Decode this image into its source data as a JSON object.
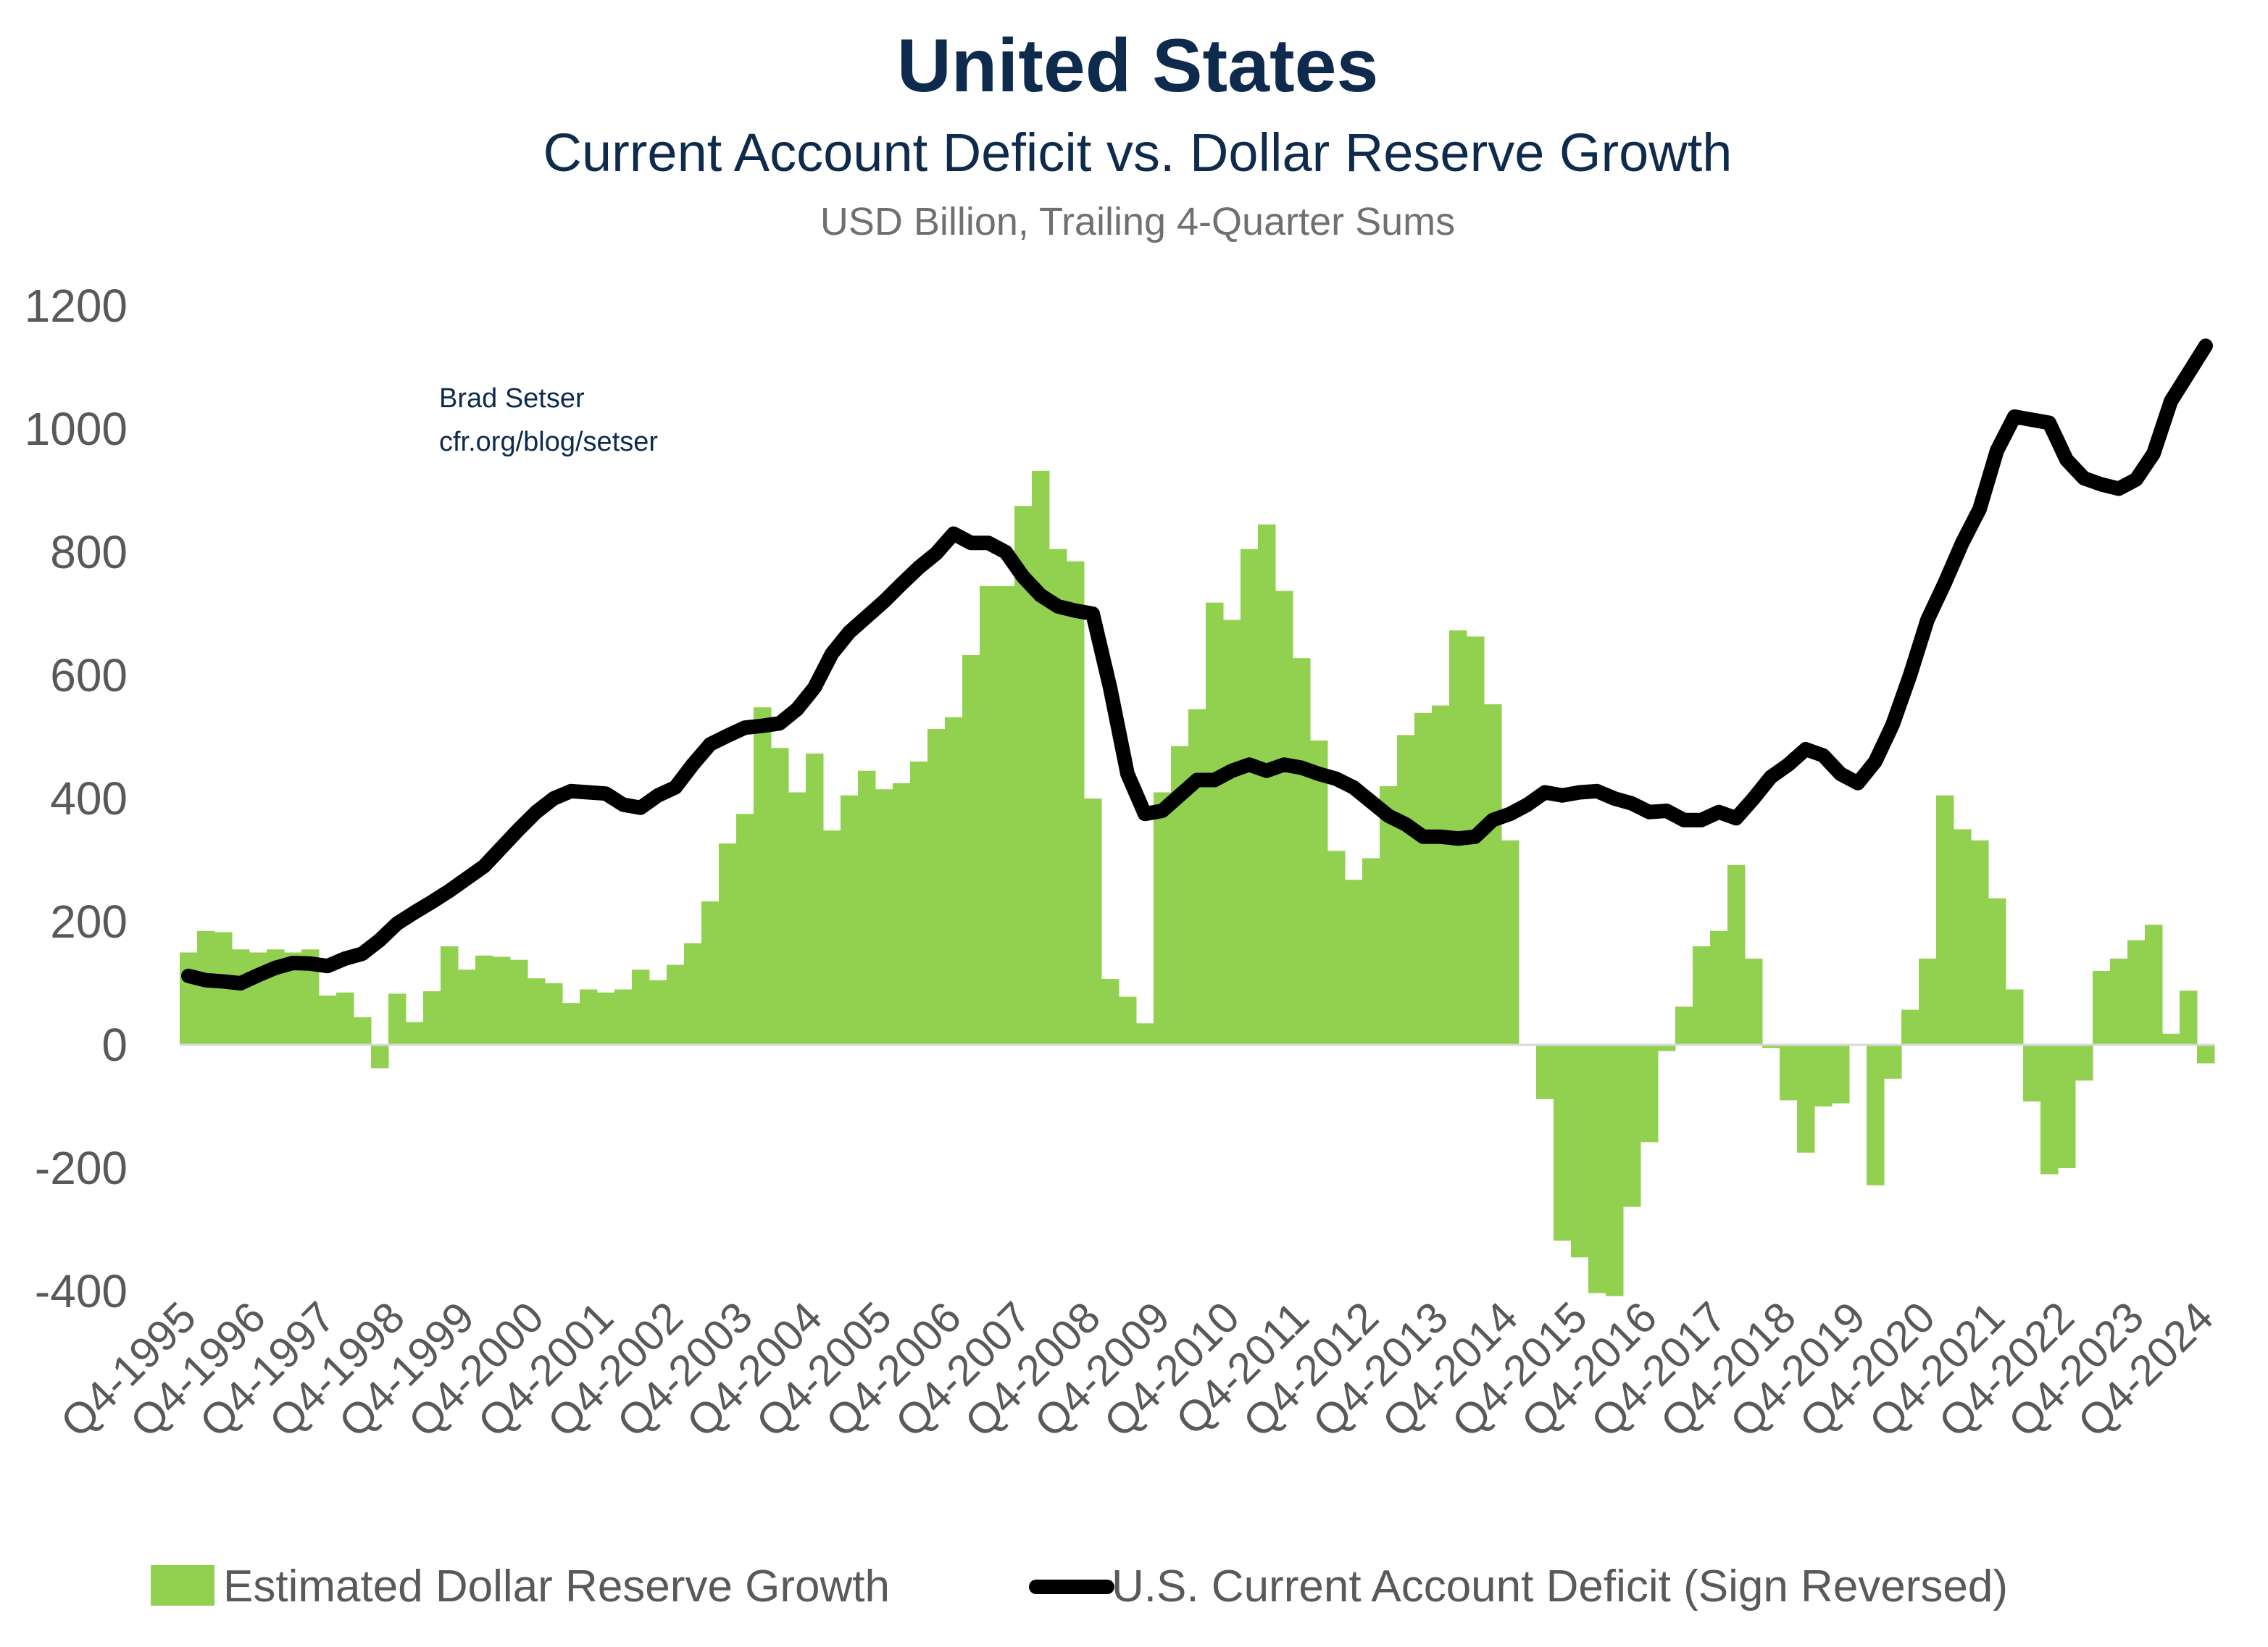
{
  "chart_data": {
    "type": "bar+line",
    "title": "United States",
    "subtitle": "Current Account Deficit vs. Dollar Reserve Growth",
    "units_note": "USD Billion, Trailing 4-Quarter Sums",
    "annotation": [
      "Brad Setser",
      "cfr.org/blog/setser"
    ],
    "ylim": [
      -400,
      1200
    ],
    "y_ticks": [
      -400,
      -200,
      0,
      200,
      400,
      600,
      800,
      1000,
      1200
    ],
    "grid": false,
    "legend_placement": "bottom",
    "colors": {
      "bars": "#92d050",
      "line": "#000000",
      "title": "#0e2a4c",
      "axis_text": "#595959",
      "zero_line": "#d9d9d9"
    },
    "x_tick_labels": [
      "Q4-1995",
      "Q4-1996",
      "Q4-1997",
      "Q4-1998",
      "Q4-1999",
      "Q4-2000",
      "Q4-2001",
      "Q4-2002",
      "Q4-2003",
      "Q4-2004",
      "Q4-2005",
      "Q4-2006",
      "Q4-2007",
      "Q4-2008",
      "Q4-2009",
      "Q4-2010",
      "Q4-2011",
      "Q4-2012",
      "Q4-2013",
      "Q4-2014",
      "Q4-2015",
      "Q4-2016",
      "Q4-2017",
      "Q4-2018",
      "Q4-2019",
      "Q4-2020",
      "Q4-2021",
      "Q4-2022",
      "Q4-2023",
      "Q4-2024"
    ],
    "categories": [
      "Q4-1995",
      "Q1-1996",
      "Q2-1996",
      "Q3-1996",
      "Q4-1996",
      "Q1-1997",
      "Q2-1997",
      "Q3-1997",
      "Q4-1997",
      "Q1-1998",
      "Q2-1998",
      "Q3-1998",
      "Q4-1998",
      "Q1-1999",
      "Q2-1999",
      "Q3-1999",
      "Q4-1999",
      "Q1-2000",
      "Q2-2000",
      "Q3-2000",
      "Q4-2000",
      "Q1-2001",
      "Q2-2001",
      "Q3-2001",
      "Q4-2001",
      "Q1-2002",
      "Q2-2002",
      "Q3-2002",
      "Q4-2002",
      "Q1-2003",
      "Q2-2003",
      "Q3-2003",
      "Q4-2003",
      "Q1-2004",
      "Q2-2004",
      "Q3-2004",
      "Q4-2004",
      "Q1-2005",
      "Q2-2005",
      "Q3-2005",
      "Q4-2005",
      "Q1-2006",
      "Q2-2006",
      "Q3-2006",
      "Q4-2006",
      "Q1-2007",
      "Q2-2007",
      "Q3-2007",
      "Q4-2007",
      "Q1-2008",
      "Q2-2008",
      "Q3-2008",
      "Q4-2008",
      "Q1-2009",
      "Q2-2009",
      "Q3-2009",
      "Q4-2009",
      "Q1-2010",
      "Q2-2010",
      "Q3-2010",
      "Q4-2010",
      "Q1-2011",
      "Q2-2011",
      "Q3-2011",
      "Q4-2011",
      "Q1-2012",
      "Q2-2012",
      "Q3-2012",
      "Q4-2012",
      "Q1-2013",
      "Q2-2013",
      "Q3-2013",
      "Q4-2013",
      "Q1-2014",
      "Q2-2014",
      "Q3-2014",
      "Q4-2014",
      "Q1-2015",
      "Q2-2015",
      "Q3-2015",
      "Q4-2015",
      "Q1-2016",
      "Q2-2016",
      "Q3-2016",
      "Q4-2016",
      "Q1-2017",
      "Q2-2017",
      "Q3-2017",
      "Q4-2017",
      "Q1-2018",
      "Q2-2018",
      "Q3-2018",
      "Q4-2018",
      "Q1-2019",
      "Q2-2019",
      "Q3-2019",
      "Q4-2019",
      "Q1-2020",
      "Q2-2020",
      "Q3-2020",
      "Q4-2020",
      "Q1-2021",
      "Q2-2021",
      "Q3-2021",
      "Q4-2021",
      "Q1-2022",
      "Q2-2022",
      "Q3-2022",
      "Q4-2022",
      "Q1-2023",
      "Q2-2023",
      "Q3-2023",
      "Q4-2023",
      "Q1-2024",
      "Q2-2024",
      "Q3-2024",
      "Q4-2024"
    ],
    "series": [
      {
        "name": "Estimated Dollar Reserve Growth",
        "type": "bar",
        "values": [
          150,
          185,
          183,
          155,
          150,
          155,
          150,
          155,
          80,
          85,
          45,
          -38,
          83,
          37,
          87,
          160,
          122,
          145,
          143,
          138,
          108,
          100,
          68,
          90,
          85,
          90,
          122,
          105,
          130,
          165,
          233,
          327,
          375,
          548,
          482,
          410,
          473,
          348,
          405,
          445,
          415,
          425,
          460,
          513,
          532,
          633,
          745,
          745,
          875,
          932,
          805,
          785,
          400,
          107,
          78,
          35,
          410,
          485,
          545,
          718,
          690,
          805,
          845,
          737,
          628,
          494,
          315,
          268,
          303,
          420,
          503,
          539,
          551,
          673,
          663,
          553,
          332,
          0,
          -88,
          -318,
          -345,
          -403,
          -408,
          -263,
          -158,
          -10,
          62,
          160,
          185,
          292,
          140,
          -5,
          -90,
          -175,
          -100,
          -95,
          0,
          -228,
          -55,
          57,
          140,
          405,
          350,
          332,
          238,
          90,
          -92,
          -210,
          -200,
          -58,
          120,
          140,
          170,
          195,
          18,
          88,
          -30
        ]
      },
      {
        "name": "U.S. Current Account Deficit (Sign Reversed)",
        "type": "line",
        "values": [
          112,
          105,
          103,
          100,
          113,
          125,
          133,
          132,
          128,
          140,
          148,
          170,
          197,
          215,
          232,
          250,
          270,
          290,
          320,
          350,
          378,
          400,
          412,
          410,
          408,
          390,
          385,
          405,
          418,
          455,
          488,
          502,
          515,
          518,
          522,
          545,
          580,
          635,
          670,
          695,
          720,
          748,
          775,
          798,
          830,
          815,
          815,
          800,
          760,
          730,
          712,
          705,
          700,
          580,
          440,
          375,
          380,
          405,
          430,
          430,
          445,
          455,
          445,
          455,
          450,
          440,
          432,
          418,
          395,
          372,
          358,
          338,
          338,
          335,
          338,
          365,
          375,
          390,
          410,
          405,
          410,
          412,
          400,
          392,
          378,
          380,
          365,
          365,
          378,
          368,
          400,
          435,
          455,
          480,
          470,
          440,
          425,
          460,
          520,
          600,
          690,
          750,
          815,
          870,
          965,
          1020,
          1015,
          1010,
          950,
          920,
          910,
          903,
          918,
          960,
          1045,
          1090,
          1135
        ]
      }
    ]
  }
}
